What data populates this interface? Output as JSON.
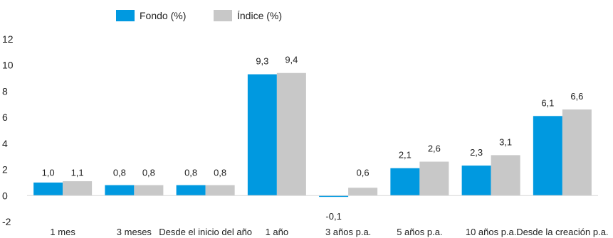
{
  "chart_data": {
    "type": "bar",
    "categories": [
      "1 mes",
      "3 meses",
      "Desde el inicio del año",
      "1 año",
      "3 años p.a.",
      "5 años p.a.",
      "10 años p.a.",
      "Desde la creación p.a."
    ],
    "series": [
      {
        "name": "Fondo (%)",
        "color": "#0099e0",
        "values": [
          1.0,
          0.8,
          0.8,
          9.3,
          -0.1,
          2.1,
          2.3,
          6.1
        ],
        "labels": [
          "1,0",
          "0,8",
          "0,8",
          "9,3",
          "-0,1",
          "2,1",
          "2,3",
          "6,1"
        ]
      },
      {
        "name": "Índice (%)",
        "color": "#c8c8c8",
        "values": [
          1.1,
          0.8,
          0.8,
          9.4,
          0.6,
          2.6,
          3.1,
          6.6
        ],
        "labels": [
          "1,1",
          "0,8",
          "0,8",
          "9,4",
          "0,6",
          "2,6",
          "3,1",
          "6,6"
        ]
      }
    ],
    "title": "",
    "xlabel": "",
    "ylabel": "",
    "ylim": [
      -2,
      12
    ],
    "yticks": [
      "-2",
      "0",
      "2",
      "4",
      "6",
      "8",
      "10",
      "12"
    ],
    "grid": false,
    "legend": "top-left"
  }
}
